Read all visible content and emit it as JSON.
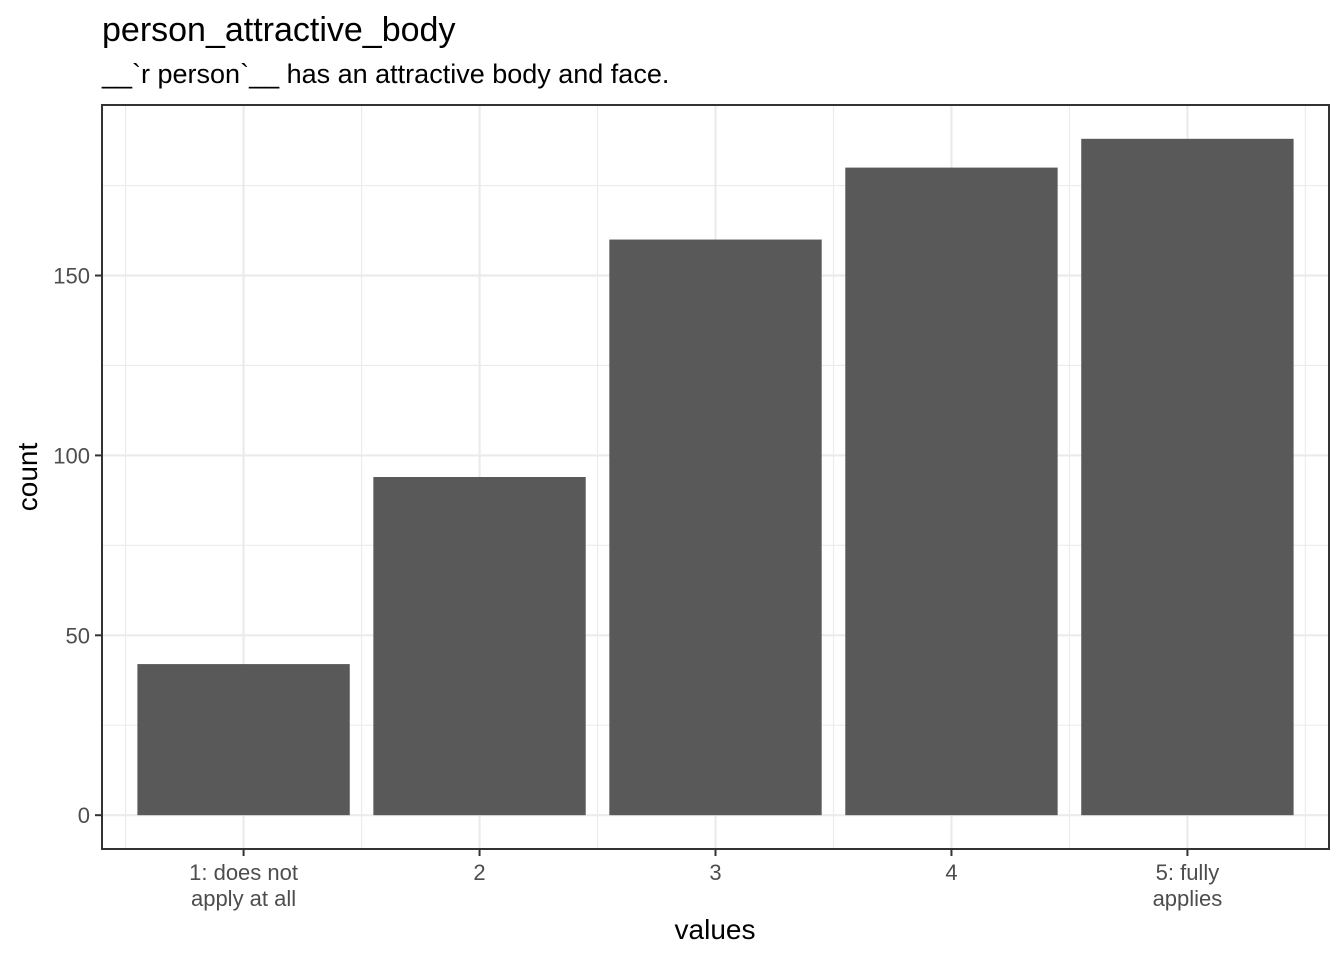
{
  "chart_data": {
    "type": "bar",
    "title": "person_attractive_body",
    "subtitle": "__`r person`__ has an attractive body and face.",
    "xlabel": "values",
    "ylabel": "count",
    "categories": [
      [
        "1: does not",
        "apply at all"
      ],
      [
        "2"
      ],
      [
        "3"
      ],
      [
        "4"
      ],
      [
        "5: fully",
        "applies"
      ]
    ],
    "values": [
      42,
      94,
      160,
      180,
      188
    ],
    "ylim": [
      -9.4,
      197.4
    ],
    "yticks": [
      0,
      50,
      100,
      150
    ],
    "grid": true,
    "bar_color": "#595959",
    "grid_major_color": "#ebebeb",
    "panel_border_color": "#333333"
  }
}
